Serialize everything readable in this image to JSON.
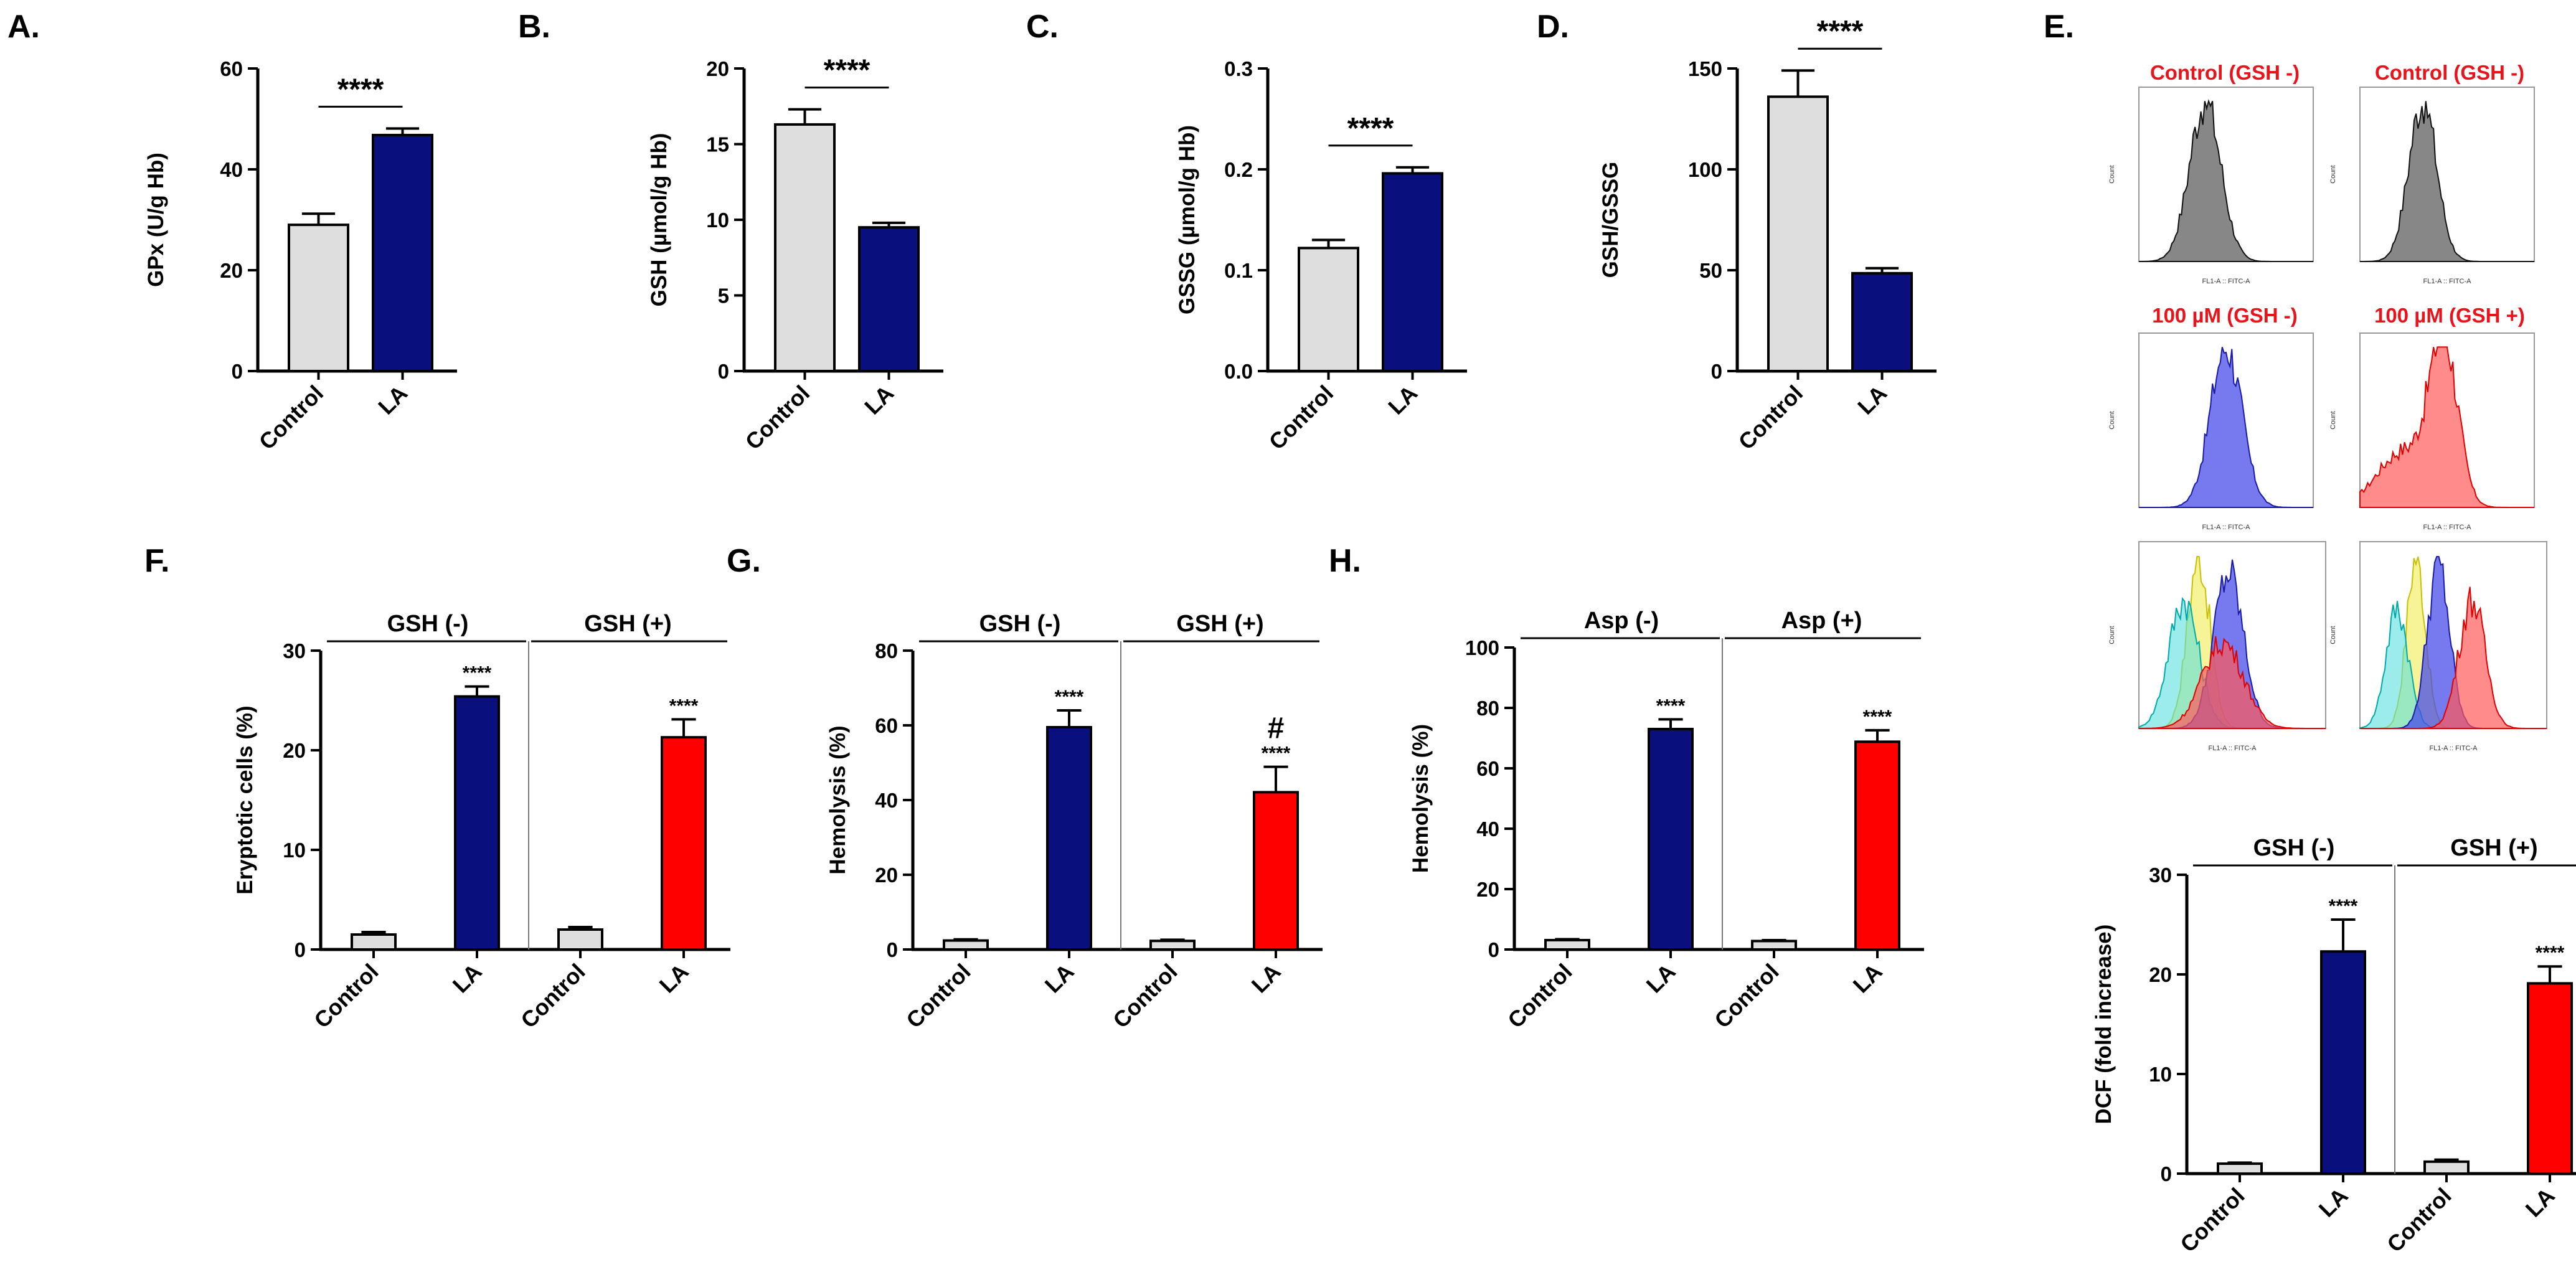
{
  "colors": {
    "control": "#dedede",
    "la_gsh_minus": "#0a0f7e",
    "la_gsh_plus": "#ff0000",
    "flow_gray": "#7a7a7a",
    "flow_blue": "#4a4de8",
    "flow_red": "#ff5a5a",
    "flow_yellow": "#f2ef6a",
    "flow_cyan": "#5ce0e0",
    "title_red": "#e8141c"
  },
  "chart_data": [
    {
      "panel": "A.",
      "type": "bar",
      "ylabel": "GPx (U/g Hb)",
      "ylim": [
        0,
        60
      ],
      "yticks": [
        "0",
        "20",
        "40",
        "60"
      ],
      "categories": [
        "Control",
        "LA"
      ],
      "values": [
        29,
        46.8
      ],
      "errors": [
        2.2,
        1.3
      ],
      "annotations": [
        "****"
      ]
    },
    {
      "panel": "B.",
      "type": "bar",
      "ylabel": "GSH (µmol/g Hb)",
      "ylim": [
        0,
        20
      ],
      "yticks": [
        "0",
        "5",
        "10",
        "15",
        "20"
      ],
      "categories": [
        "Control",
        "LA"
      ],
      "values": [
        16.3,
        9.5
      ],
      "errors": [
        1.0,
        0.3
      ],
      "annotations": [
        "****"
      ]
    },
    {
      "panel": "C.",
      "type": "bar",
      "ylabel": "GSSG (µmol/g Hb)",
      "ylim": [
        0,
        0.3
      ],
      "yticks": [
        "0.0",
        "0.1",
        "0.2",
        "0.3"
      ],
      "categories": [
        "Control",
        "LA"
      ],
      "values": [
        0.122,
        0.196
      ],
      "errors": [
        0.008,
        0.006
      ],
      "annotations": [
        "****"
      ]
    },
    {
      "panel": "D.",
      "type": "bar",
      "ylabel": "GSH/GSSG",
      "ylim": [
        0,
        150
      ],
      "yticks": [
        "0",
        "50",
        "100",
        "150"
      ],
      "categories": [
        "Control",
        "LA"
      ],
      "values": [
        136,
        48.5
      ],
      "errors": [
        13,
        2.5
      ],
      "annotations": [
        "****"
      ]
    },
    {
      "panel": "F.",
      "type": "bar",
      "ylabel": "Eryptotic cells (%)",
      "ylim": [
        0,
        30
      ],
      "yticks": [
        "0",
        "10",
        "20",
        "30"
      ],
      "groups": [
        "GSH (-)",
        "GSH (+)"
      ],
      "categories": [
        "Control",
        "LA",
        "Control",
        "LA"
      ],
      "values": [
        1.5,
        25.4,
        2.0,
        21.3
      ],
      "errors": [
        0.25,
        1.0,
        0.25,
        1.8
      ],
      "annotations": [
        "",
        "****",
        "",
        "****"
      ]
    },
    {
      "panel": "G.",
      "type": "bar",
      "ylabel": "Hemolysis (%)",
      "ylim": [
        0,
        80
      ],
      "yticks": [
        "0",
        "20",
        "40",
        "60",
        "80"
      ],
      "groups": [
        "GSH (-)",
        "GSH (+)"
      ],
      "categories": [
        "Control",
        "LA",
        "Control",
        "LA"
      ],
      "values": [
        2.4,
        59.5,
        2.3,
        42.1
      ],
      "errors": [
        0.3,
        4.5,
        0.3,
        6.8
      ],
      "annotations": [
        "",
        "****",
        "",
        "****"
      ],
      "extra_annotations": [
        "",
        "",
        "",
        "#"
      ]
    },
    {
      "panel": "H.",
      "type": "bar",
      "ylabel": "Hemolysis (%)",
      "ylim": [
        0,
        100
      ],
      "yticks": [
        "0",
        "20",
        "40",
        "60",
        "80",
        "100"
      ],
      "groups": [
        "Asp (-)",
        "Asp (+)"
      ],
      "categories": [
        "Control",
        "LA",
        "Control",
        "LA"
      ],
      "values": [
        3.1,
        73,
        2.8,
        68.8
      ],
      "errors": [
        0.3,
        3.2,
        0.3,
        3.8
      ],
      "annotations": [
        "",
        "****",
        "",
        "****"
      ]
    },
    {
      "panel": "E-bar",
      "type": "bar",
      "ylabel": "DCF (fold increase)",
      "ylim": [
        0,
        30
      ],
      "yticks": [
        "0",
        "10",
        "20",
        "30"
      ],
      "groups": [
        "GSH (-)",
        "GSH (+)"
      ],
      "categories": [
        "Control",
        "LA",
        "Control",
        "LA"
      ],
      "values": [
        1.0,
        22.3,
        1.2,
        19.1
      ],
      "errors": [
        0.1,
        3.2,
        0.2,
        1.7
      ],
      "annotations": [
        "",
        "****",
        "",
        "****"
      ]
    }
  ],
  "flow_panel": {
    "label": "E.",
    "titles": [
      "Control (GSH -)",
      "Control (GSH -)",
      "100 µM (GSH -)",
      "100 µM (GSH +)"
    ],
    "axis_label": "FL1-A :: FITC-A",
    "count_label": "Count"
  }
}
